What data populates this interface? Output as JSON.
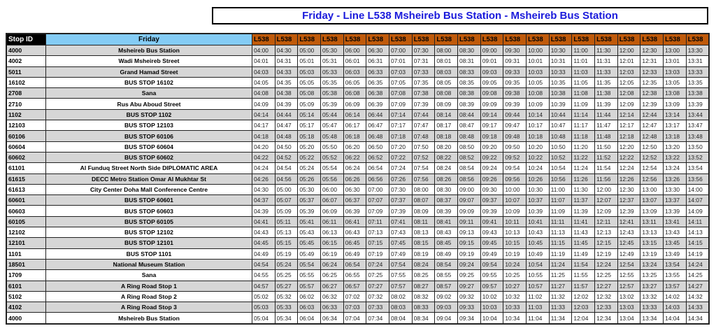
{
  "title": "Friday - Line L538 Msheireb Bus Station - Msheireb Bus Station",
  "header": {
    "stop_id": "Stop ID",
    "day": "Friday",
    "trip_label": "L538",
    "trip_count": 20
  },
  "colors": {
    "title": "#1a1adb",
    "day_header": "#84ccf5",
    "trip_header": "#c05a0a",
    "shaded_row": "#d6d6d6"
  },
  "rows": [
    {
      "id": "4000",
      "name": "Msheireb Bus Station",
      "times": [
        "04:00",
        "04:30",
        "05:00",
        "05:30",
        "06:00",
        "06:30",
        "07:00",
        "07:30",
        "08:00",
        "08:30",
        "09:00",
        "09:30",
        "10:00",
        "10:30",
        "11:00",
        "11:30",
        "12:00",
        "12:30",
        "13:00",
        "13:30"
      ]
    },
    {
      "id": "4002",
      "name": "Wadi Msheireb Street",
      "times": [
        "04:01",
        "04:31",
        "05:01",
        "05:31",
        "06:01",
        "06:31",
        "07:01",
        "07:31",
        "08:01",
        "08:31",
        "09:01",
        "09:31",
        "10:01",
        "10:31",
        "11:01",
        "11:31",
        "12:01",
        "12:31",
        "13:01",
        "13:31"
      ]
    },
    {
      "id": "5011",
      "name": "Grand Hamad Street",
      "times": [
        "04:03",
        "04:33",
        "05:03",
        "05:33",
        "06:03",
        "06:33",
        "07:03",
        "07:33",
        "08:03",
        "08:33",
        "09:03",
        "09:33",
        "10:03",
        "10:33",
        "11:03",
        "11:33",
        "12:03",
        "12:33",
        "13:03",
        "13:33"
      ]
    },
    {
      "id": "16102",
      "name": "BUS STOP 16102",
      "times": [
        "04:05",
        "04:35",
        "05:05",
        "05:35",
        "06:05",
        "06:35",
        "07:05",
        "07:35",
        "08:05",
        "08:35",
        "09:05",
        "09:35",
        "10:05",
        "10:35",
        "11:05",
        "11:35",
        "12:05",
        "12:35",
        "13:05",
        "13:35"
      ]
    },
    {
      "id": "2708",
      "name": "Sana",
      "times": [
        "04:08",
        "04:38",
        "05:08",
        "05:38",
        "06:08",
        "06:38",
        "07:08",
        "07:38",
        "08:08",
        "08:38",
        "09:08",
        "09:38",
        "10:08",
        "10:38",
        "11:08",
        "11:38",
        "12:08",
        "12:38",
        "13:08",
        "13:38"
      ]
    },
    {
      "id": "2710",
      "name": "Rus Abu Aboud Street",
      "times": [
        "04:09",
        "04:39",
        "05:09",
        "05:39",
        "06:09",
        "06:39",
        "07:09",
        "07:39",
        "08:09",
        "08:39",
        "09:09",
        "09:39",
        "10:09",
        "10:39",
        "11:09",
        "11:39",
        "12:09",
        "12:39",
        "13:09",
        "13:39"
      ]
    },
    {
      "id": "1102",
      "name": "BUS STOP 1102",
      "times": [
        "04:14",
        "04:44",
        "05:14",
        "05:44",
        "06:14",
        "06:44",
        "07:14",
        "07:44",
        "08:14",
        "08:44",
        "09:14",
        "09:44",
        "10:14",
        "10:44",
        "11:14",
        "11:44",
        "12:14",
        "12:44",
        "13:14",
        "13:44"
      ]
    },
    {
      "id": "12103",
      "name": "BUS STOP 12103",
      "times": [
        "04:17",
        "04:47",
        "05:17",
        "05:47",
        "06:17",
        "06:47",
        "07:17",
        "07:47",
        "08:17",
        "08:47",
        "09:17",
        "09:47",
        "10:17",
        "10:47",
        "11:17",
        "11:47",
        "12:17",
        "12:47",
        "13:17",
        "13:47"
      ]
    },
    {
      "id": "60106",
      "name": "BUS STOP 60106",
      "times": [
        "04:18",
        "04:48",
        "05:18",
        "05:48",
        "06:18",
        "06:48",
        "07:18",
        "07:48",
        "08:18",
        "08:48",
        "09:18",
        "09:48",
        "10:18",
        "10:48",
        "11:18",
        "11:48",
        "12:18",
        "12:48",
        "13:18",
        "13:48"
      ]
    },
    {
      "id": "60604",
      "name": "BUS STOP 60604",
      "times": [
        "04:20",
        "04:50",
        "05:20",
        "05:50",
        "06:20",
        "06:50",
        "07:20",
        "07:50",
        "08:20",
        "08:50",
        "09:20",
        "09:50",
        "10:20",
        "10:50",
        "11:20",
        "11:50",
        "12:20",
        "12:50",
        "13:20",
        "13:50"
      ]
    },
    {
      "id": "60602",
      "name": "BUS STOP 60602",
      "times": [
        "04:22",
        "04:52",
        "05:22",
        "05:52",
        "06:22",
        "06:52",
        "07:22",
        "07:52",
        "08:22",
        "08:52",
        "09:22",
        "09:52",
        "10:22",
        "10:52",
        "11:22",
        "11:52",
        "12:22",
        "12:52",
        "13:22",
        "13:52"
      ]
    },
    {
      "id": "61101",
      "name": "Al Funduq Street North Side DIPLOMATIC AREA",
      "times": [
        "04:24",
        "04:54",
        "05:24",
        "05:54",
        "06:24",
        "06:54",
        "07:24",
        "07:54",
        "08:24",
        "08:54",
        "09:24",
        "09:54",
        "10:24",
        "10:54",
        "11:24",
        "11:54",
        "12:24",
        "12:54",
        "13:24",
        "13:54"
      ]
    },
    {
      "id": "61615",
      "name": "DECC Metro Station Omar Al Mukhtar St",
      "times": [
        "04:26",
        "04:56",
        "05:26",
        "05:56",
        "06:26",
        "06:56",
        "07:26",
        "07:56",
        "08:26",
        "08:56",
        "09:26",
        "09:56",
        "10:26",
        "10:56",
        "11:26",
        "11:56",
        "12:26",
        "12:56",
        "13:26",
        "13:56"
      ]
    },
    {
      "id": "61613",
      "name": "City Center Doha Mall Conference Centre",
      "times": [
        "04:30",
        "05:00",
        "05:30",
        "06:00",
        "06:30",
        "07:00",
        "07:30",
        "08:00",
        "08:30",
        "09:00",
        "09:30",
        "10:00",
        "10:30",
        "11:00",
        "11:30",
        "12:00",
        "12:30",
        "13:00",
        "13:30",
        "14:00"
      ]
    },
    {
      "id": "60601",
      "name": "BUS STOP 60601",
      "times": [
        "04:37",
        "05:07",
        "05:37",
        "06:07",
        "06:37",
        "07:07",
        "07:37",
        "08:07",
        "08:37",
        "09:07",
        "09:37",
        "10:07",
        "10:37",
        "11:07",
        "11:37",
        "12:07",
        "12:37",
        "13:07",
        "13:37",
        "14:07"
      ]
    },
    {
      "id": "60603",
      "name": "BUS STOP 60603",
      "times": [
        "04:39",
        "05:09",
        "05:39",
        "06:09",
        "06:39",
        "07:09",
        "07:39",
        "08:09",
        "08:39",
        "09:09",
        "09:39",
        "10:09",
        "10:39",
        "11:09",
        "11:39",
        "12:09",
        "12:39",
        "13:09",
        "13:39",
        "14:09"
      ]
    },
    {
      "id": "60105",
      "name": "BUS STOP 60105",
      "times": [
        "04:41",
        "05:11",
        "05:41",
        "06:11",
        "06:41",
        "07:11",
        "07:41",
        "08:11",
        "08:41",
        "09:11",
        "09:41",
        "10:11",
        "10:41",
        "11:11",
        "11:41",
        "12:11",
        "12:41",
        "13:11",
        "13:41",
        "14:11"
      ]
    },
    {
      "id": "12102",
      "name": "BUS STOP 12102",
      "times": [
        "04:43",
        "05:13",
        "05:43",
        "06:13",
        "06:43",
        "07:13",
        "07:43",
        "08:13",
        "08:43",
        "09:13",
        "09:43",
        "10:13",
        "10:43",
        "11:13",
        "11:43",
        "12:13",
        "12:43",
        "13:13",
        "13:43",
        "14:13"
      ]
    },
    {
      "id": "12101",
      "name": "BUS STOP 12101",
      "times": [
        "04:45",
        "05:15",
        "05:45",
        "06:15",
        "06:45",
        "07:15",
        "07:45",
        "08:15",
        "08:45",
        "09:15",
        "09:45",
        "10:15",
        "10:45",
        "11:15",
        "11:45",
        "12:15",
        "12:45",
        "13:15",
        "13:45",
        "14:15"
      ]
    },
    {
      "id": "1101",
      "name": "BUS STOP 1101",
      "times": [
        "04:49",
        "05:19",
        "05:49",
        "06:19",
        "06:49",
        "07:19",
        "07:49",
        "08:19",
        "08:49",
        "09:19",
        "09:49",
        "10:19",
        "10:49",
        "11:19",
        "11:49",
        "12:19",
        "12:49",
        "13:19",
        "13:49",
        "14:19"
      ]
    },
    {
      "id": "18501",
      "name": "National Museum Station",
      "times": [
        "04:54",
        "05:24",
        "05:54",
        "06:24",
        "06:54",
        "07:24",
        "07:54",
        "08:24",
        "08:54",
        "09:24",
        "09:54",
        "10:24",
        "10:54",
        "11:24",
        "11:54",
        "12:24",
        "12:54",
        "13:24",
        "13:54",
        "14:24"
      ]
    },
    {
      "id": "1709",
      "name": "Sana",
      "times": [
        "04:55",
        "05:25",
        "05:55",
        "06:25",
        "06:55",
        "07:25",
        "07:55",
        "08:25",
        "08:55",
        "09:25",
        "09:55",
        "10:25",
        "10:55",
        "11:25",
        "11:55",
        "12:25",
        "12:55",
        "13:25",
        "13:55",
        "14:25"
      ]
    },
    {
      "id": "6101",
      "name": "A Ring Road Stop 1",
      "times": [
        "04:57",
        "05:27",
        "05:57",
        "06:27",
        "06:57",
        "07:27",
        "07:57",
        "08:27",
        "08:57",
        "09:27",
        "09:57",
        "10:27",
        "10:57",
        "11:27",
        "11:57",
        "12:27",
        "12:57",
        "13:27",
        "13:57",
        "14:27"
      ]
    },
    {
      "id": "5102",
      "name": "A Ring Road Stop 2",
      "times": [
        "05:02",
        "05:32",
        "06:02",
        "06:32",
        "07:02",
        "07:32",
        "08:02",
        "08:32",
        "09:02",
        "09:32",
        "10:02",
        "10:32",
        "11:02",
        "11:32",
        "12:02",
        "12:32",
        "13:02",
        "13:32",
        "14:02",
        "14:32"
      ]
    },
    {
      "id": "4102",
      "name": "A Ring Road Stop 3",
      "times": [
        "05:03",
        "05:33",
        "06:03",
        "06:33",
        "07:03",
        "07:33",
        "08:03",
        "08:33",
        "09:03",
        "09:33",
        "10:03",
        "10:33",
        "11:03",
        "11:33",
        "12:03",
        "12:33",
        "13:03",
        "13:33",
        "14:03",
        "14:33"
      ]
    },
    {
      "id": "4000",
      "name": "Msheireb Bus Station",
      "times": [
        "05:04",
        "05:34",
        "06:04",
        "06:34",
        "07:04",
        "07:34",
        "08:04",
        "08:34",
        "09:04",
        "09:34",
        "10:04",
        "10:34",
        "11:04",
        "11:34",
        "12:04",
        "12:34",
        "13:04",
        "13:34",
        "14:04",
        "14:34"
      ]
    }
  ]
}
